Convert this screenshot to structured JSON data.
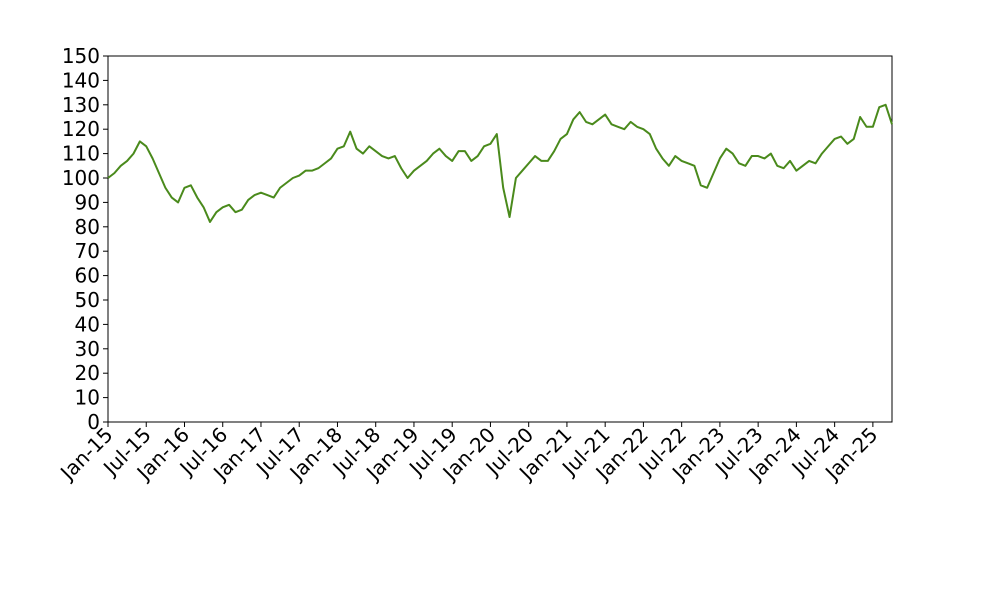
{
  "chart_data": {
    "type": "line",
    "x": [
      "2015-01",
      "2015-02",
      "2015-03",
      "2015-04",
      "2015-05",
      "2015-06",
      "2015-07",
      "2015-08",
      "2015-09",
      "2015-10",
      "2015-11",
      "2015-12",
      "2016-01",
      "2016-02",
      "2016-03",
      "2016-04",
      "2016-05",
      "2016-06",
      "2016-07",
      "2016-08",
      "2016-09",
      "2016-10",
      "2016-11",
      "2016-12",
      "2017-01",
      "2017-02",
      "2017-03",
      "2017-04",
      "2017-05",
      "2017-06",
      "2017-07",
      "2017-08",
      "2017-09",
      "2017-10",
      "2017-11",
      "2017-12",
      "2018-01",
      "2018-02",
      "2018-03",
      "2018-04",
      "2018-05",
      "2018-06",
      "2018-07",
      "2018-08",
      "2018-09",
      "2018-10",
      "2018-11",
      "2018-12",
      "2019-01",
      "2019-02",
      "2019-03",
      "2019-04",
      "2019-05",
      "2019-06",
      "2019-07",
      "2019-08",
      "2019-09",
      "2019-10",
      "2019-11",
      "2019-12",
      "2020-01",
      "2020-02",
      "2020-03",
      "2020-04",
      "2020-05",
      "2020-06",
      "2020-07",
      "2020-08",
      "2020-09",
      "2020-10",
      "2020-11",
      "2020-12",
      "2021-01",
      "2021-02",
      "2021-03",
      "2021-04",
      "2021-05",
      "2021-06",
      "2021-07",
      "2021-08",
      "2021-09",
      "2021-10",
      "2021-11",
      "2021-12",
      "2022-01",
      "2022-02",
      "2022-03",
      "2022-04",
      "2022-05",
      "2022-06",
      "2022-07",
      "2022-08",
      "2022-09",
      "2022-10",
      "2022-11",
      "2022-12",
      "2023-01",
      "2023-02",
      "2023-03",
      "2023-04",
      "2023-05",
      "2023-06",
      "2023-07",
      "2023-08",
      "2023-09",
      "2023-10",
      "2023-11",
      "2023-12",
      "2024-01",
      "2024-02",
      "2024-03",
      "2024-04",
      "2024-05",
      "2024-06",
      "2024-07",
      "2024-08",
      "2024-09",
      "2024-10",
      "2024-11",
      "2024-12",
      "2025-01",
      "2025-02",
      "2025-03",
      "2025-04"
    ],
    "values": [
      100,
      102,
      105,
      107,
      110,
      115,
      113,
      108,
      102,
      96,
      92,
      90,
      96,
      97,
      92,
      88,
      82,
      86,
      88,
      89,
      86,
      87,
      91,
      93,
      94,
      93,
      92,
      96,
      98,
      100,
      101,
      103,
      103,
      104,
      106,
      108,
      112,
      113,
      119,
      112,
      110,
      113,
      111,
      109,
      108,
      109,
      104,
      100,
      103,
      105,
      107,
      110,
      112,
      109,
      107,
      111,
      111,
      107,
      109,
      113,
      114,
      118,
      96,
      84,
      100,
      103,
      106,
      109,
      107,
      107,
      111,
      116,
      118,
      124,
      127,
      123,
      122,
      124,
      126,
      122,
      121,
      120,
      123,
      121,
      120,
      118,
      112,
      108,
      105,
      109,
      107,
      106,
      105,
      97,
      96,
      102,
      108,
      112,
      110,
      106,
      105,
      109,
      109,
      108,
      110,
      105,
      104,
      107,
      103,
      105,
      107,
      106,
      110,
      113,
      116,
      117,
      114,
      116,
      125,
      121,
      121,
      129,
      130,
      122
    ],
    "color": "#4a8a1c",
    "xlim": [
      "2015-01",
      "2025-04"
    ],
    "xticks": [
      {
        "value": "2015-01",
        "label": "Jan-15"
      },
      {
        "value": "2015-07",
        "label": "Jul-15"
      },
      {
        "value": "2016-01",
        "label": "Jan-16"
      },
      {
        "value": "2016-07",
        "label": "Jul-16"
      },
      {
        "value": "2017-01",
        "label": "Jan-17"
      },
      {
        "value": "2017-07",
        "label": "Jul-17"
      },
      {
        "value": "2018-01",
        "label": "Jan-18"
      },
      {
        "value": "2018-07",
        "label": "Jul-18"
      },
      {
        "value": "2019-01",
        "label": "Jan-19"
      },
      {
        "value": "2019-07",
        "label": "Jul-19"
      },
      {
        "value": "2020-01",
        "label": "Jan-20"
      },
      {
        "value": "2020-07",
        "label": "Jul-20"
      },
      {
        "value": "2021-01",
        "label": "Jan-21"
      },
      {
        "value": "2021-07",
        "label": "Jul-21"
      },
      {
        "value": "2022-01",
        "label": "Jan-22"
      },
      {
        "value": "2022-07",
        "label": "Jul-22"
      },
      {
        "value": "2023-01",
        "label": "Jan-23"
      },
      {
        "value": "2023-07",
        "label": "Jul-23"
      },
      {
        "value": "2024-01",
        "label": "Jan-24"
      },
      {
        "value": "2024-07",
        "label": "Jul-24"
      },
      {
        "value": "2025-01",
        "label": "Jan-25"
      }
    ],
    "ylim": [
      0,
      150
    ],
    "yticks": [
      0,
      10,
      20,
      30,
      40,
      50,
      60,
      70,
      80,
      90,
      100,
      110,
      120,
      130,
      140,
      150
    ],
    "grid": false
  }
}
